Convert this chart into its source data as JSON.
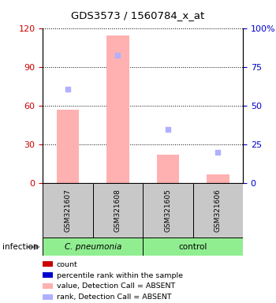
{
  "title": "GDS3573 / 1560784_x_at",
  "samples": [
    "GSM321607",
    "GSM321608",
    "GSM321605",
    "GSM321606"
  ],
  "group1_label": "C. pneumonia",
  "group2_label": "control",
  "bar_values_absent": [
    57,
    115,
    22,
    7
  ],
  "rank_absent": [
    61,
    83,
    35,
    20
  ],
  "ylim_left": [
    0,
    120
  ],
  "ylim_right": [
    0,
    100
  ],
  "yticks_left": [
    0,
    30,
    60,
    90,
    120
  ],
  "yticks_right": [
    0,
    25,
    50,
    75,
    100
  ],
  "left_color": "#cc0000",
  "right_color": "#0000cc",
  "bar_color_absent": "#ffb0b0",
  "rank_color_absent": "#b0b0ff",
  "infection_label": "infection",
  "legend_items": [
    {
      "color": "#cc0000",
      "label": "count"
    },
    {
      "color": "#0000cc",
      "label": "percentile rank within the sample"
    },
    {
      "color": "#ffb0b0",
      "label": "value, Detection Call = ABSENT"
    },
    {
      "color": "#b0b0ff",
      "label": "rank, Detection Call = ABSENT"
    }
  ]
}
